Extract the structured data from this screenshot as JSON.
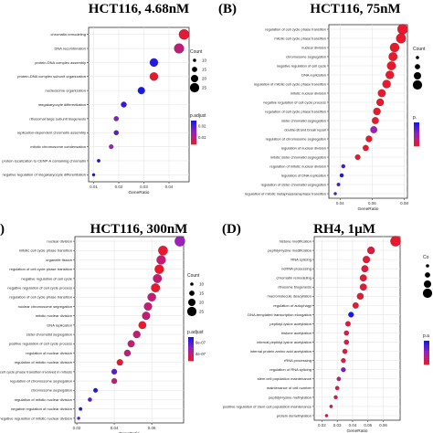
{
  "chart_data": [
    {
      "type": "scatter",
      "panel_letter": "",
      "title": "HCT116, 4.68nM",
      "xlabel": "GeneRatio",
      "ylabel": "",
      "xlim": [
        0.008,
        0.048
      ],
      "xticks": [
        0.01,
        0.02,
        0.03,
        0.04
      ],
      "xtick_labels": [
        "0.01",
        "0.02",
        "0.03",
        "0.04"
      ],
      "categories": [
        "chromatin remodeling",
        "DNA recombination",
        "protein-DNA complex assembly",
        "protein-DNA complex subunit organization",
        "nucleosome organization",
        "megakaryocyte differentiation",
        "ribosomal large subunit biogenesis",
        "replication-dependent chromatin assembly",
        "mitotic chromosome condensation",
        "protein localization to CENP-A containing chromatin",
        "negative regulation of megakaryocyte differentiation"
      ],
      "x": [
        0.046,
        0.044,
        0.034,
        0.034,
        0.029,
        0.022,
        0.019,
        0.019,
        0.017,
        0.012,
        0.01
      ],
      "count": [
        22,
        21,
        17,
        17,
        14,
        10,
        8,
        8,
        7,
        4,
        3
      ],
      "p_adjust": [
        0.005,
        0.01,
        0.025,
        0.004,
        0.026,
        0.024,
        0.017,
        0.021,
        0.015,
        0.026,
        0.026
      ],
      "legend_size": {
        "title": "Count",
        "values": [
          "10",
          "15",
          "20",
          "25"
        ]
      },
      "legend_color": {
        "title": "p.adjust",
        "ticks": [
          "0.01",
          "0.02"
        ]
      }
    },
    {
      "type": "scatter",
      "panel_letter": "(B)",
      "title": "HCT116, 75nM",
      "xlabel": "GeneRatio",
      "ylabel": "",
      "xlim": [
        0.033,
        0.082
      ],
      "xticks": [
        0.04,
        0.06,
        0.08
      ],
      "xtick_labels": [
        "0.04",
        "0.06",
        "0.08"
      ],
      "categories": [
        "regulation of cell cycle phase transition",
        "mitotic cell cycle phase transition",
        "nuclear division",
        "chromosome segregation",
        "negative regulation of cell cycle",
        "DNA replication",
        "regulation of mitotic cell cycle phase transition",
        "mitotic nuclear division",
        "negative regulation of cell cycle process",
        "regulation of cell cycle phase transition",
        "sister chromatid segregation",
        "double-strand break repair",
        "regulation of chromosome segregation",
        "regulation of nuclear division",
        "mitotic sister chromatid segregation",
        "regulation of mitotic nuclear division",
        "regulation of DNA replication",
        "regulation of sister chromatid segregation",
        "regulation of mitotic metaphase/anaphase transition"
      ],
      "x": [
        0.079,
        0.078,
        0.074,
        0.073,
        0.072,
        0.071,
        0.069,
        0.066,
        0.065,
        0.063,
        0.062,
        0.061,
        0.058,
        0.056,
        0.051,
        0.042,
        0.041,
        0.039,
        0.037
      ],
      "count": [
        27,
        26,
        25,
        24,
        24,
        23,
        23,
        22,
        21,
        21,
        20,
        20,
        19,
        18,
        17,
        14,
        14,
        13,
        12
      ],
      "p_adjust": [
        0.001,
        0.001,
        0.001,
        0.001,
        0.001,
        0.001,
        0.001,
        0.001,
        0.001,
        0.001,
        0.001,
        0.004,
        0.001,
        0.001,
        0.001,
        0.006,
        0.007,
        0.006,
        0.006
      ],
      "legend_size": {
        "title": "Count",
        "values": []
      },
      "legend_color": {
        "title": "p.",
        "ticks": []
      }
    },
    {
      "type": "scatter",
      "panel_letter": ")",
      "title": "HCT116, 300nM",
      "xlabel": "GeneRatio",
      "ylabel": "",
      "xlim": [
        0.019,
        0.077
      ],
      "xticks": [
        0.02,
        0.04,
        0.06
      ],
      "xtick_labels": [
        "0.02",
        "0.04",
        "0.06"
      ],
      "categories": [
        "nuclear division",
        "mitotic cell cycle phase transition",
        "organelle fission",
        "regulation of cell cycle phase transition",
        "negative regulation of cell cycle",
        "negative regulation of cell cycle process",
        "regulation of cell cycle phase transition",
        "nuclear chromosome segregation",
        "mitotic nuclear division",
        "DNA replication",
        "sister chromatid segregation",
        "positive regulation of cell cycle process",
        "regulation of nuclear division",
        "regulation of mitotic nuclear division",
        "regulation of mitotic cell cycle phase transition involved in mitosis",
        "regulation of chromosome segregation",
        "chromosome segregation",
        "regulation of mitotic nuclear division",
        "negative regulation of nuclear division",
        "negative regulation of mitotic nuclear division"
      ],
      "x": [
        0.075,
        0.066,
        0.065,
        0.064,
        0.063,
        0.062,
        0.06,
        0.058,
        0.057,
        0.055,
        0.052,
        0.049,
        0.047,
        0.043,
        0.04,
        0.04,
        0.03,
        0.027,
        0.022,
        0.021
      ],
      "count": [
        28,
        26,
        25,
        25,
        24,
        24,
        23,
        22,
        22,
        21,
        20,
        19,
        18,
        17,
        15,
        15,
        12,
        11,
        9,
        8
      ],
      "p_adjust": [
        5e-05,
        3e-05,
        4e-05,
        3e-05,
        4e-05,
        3e-05,
        4e-05,
        4e-05,
        4e-05,
        3e-05,
        4e-05,
        4e-05,
        4e-05,
        3e-05,
        6e-05,
        4e-05,
        7e-05,
        6e-05,
        7e-05,
        6e-05
      ],
      "legend_size": {
        "title": "Count",
        "values": [
          "10",
          "15",
          "20",
          "25"
        ]
      },
      "legend_color": {
        "title": "p.adjust",
        "ticks": [
          "4e-07",
          "6e-07"
        ]
      }
    },
    {
      "type": "scatter",
      "panel_letter": "(D)",
      "title": "RH4, 1µM",
      "xlabel": "GeneRatio",
      "ylabel": "",
      "xlim": [
        0.015,
        0.071
      ],
      "xticks": [
        0.02,
        0.03,
        0.04,
        0.05,
        0.06
      ],
      "xtick_labels": [
        "0.02",
        "0.03",
        "0.04",
        "0.05",
        "0.06"
      ],
      "categories": [
        "histone modification",
        "peptidyl-lysine modification",
        "RNA splicing",
        "ncRNA processing",
        "chromatin remodeling",
        "ribosome biogenesis",
        "macromolecule deacylation",
        "regulation of autophagy",
        "DNA-templated transcription elongation",
        "peptidyl-lysine acetylation",
        "histone acetylation",
        "internal peptidyl-lysine acetylation",
        "internal protein amino acid acetylation",
        "rRNA processing",
        "regulation of RNA splicing",
        "stem cell population maintenance",
        "maintenance of cell number",
        "peptidyl-lysine methylation",
        "positive regulation of stem cell population maintenance",
        "protein demethylation"
      ],
      "x": [
        0.068,
        0.052,
        0.049,
        0.048,
        0.047,
        0.047,
        0.045,
        0.042,
        0.039,
        0.037,
        0.036,
        0.036,
        0.035,
        0.034,
        0.034,
        0.031,
        0.03,
        0.029,
        0.026,
        0.023
      ],
      "count": [
        40,
        30,
        29,
        28,
        28,
        28,
        27,
        25,
        23,
        22,
        21,
        21,
        21,
        20,
        20,
        18,
        18,
        17,
        15,
        14
      ],
      "p_adjust": [
        0.002,
        0.004,
        0.003,
        0.004,
        0.003,
        0.003,
        0.003,
        0.003,
        0.03,
        0.004,
        0.004,
        0.004,
        0.004,
        0.004,
        0.02,
        0.01,
        0.004,
        0.004,
        0.004,
        0.005
      ],
      "legend_size": {
        "title": "Co",
        "values": []
      },
      "legend_color": {
        "title": "p.a",
        "ticks": []
      }
    }
  ],
  "colors": {
    "low": "#e8192c",
    "mid": "#9b21b8",
    "high": "#1818e8",
    "dot_stroke": "#222222"
  }
}
